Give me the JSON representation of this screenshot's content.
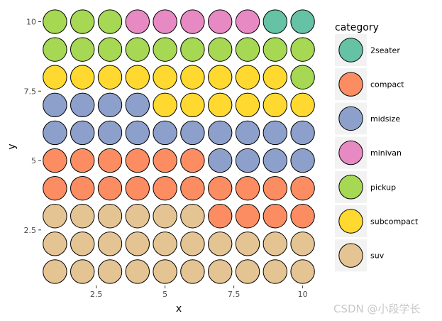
{
  "chart_data": {
    "type": "waffle-scatter",
    "xlabel": "x",
    "ylabel": "y",
    "xlim": [
      0.5,
      10.5
    ],
    "ylim": [
      0.5,
      10.5
    ],
    "xticks": [
      2.5,
      5,
      7.5,
      10
    ],
    "yticks": [
      2.5,
      5,
      7.5,
      10
    ],
    "xtick_labels": [
      "2.5",
      "5",
      "7.5",
      "10"
    ],
    "ytick_labels": [
      "2.5",
      "5",
      "7.5",
      "10"
    ],
    "legend": {
      "title": "category",
      "position": "right",
      "items": [
        {
          "key": "2seater",
          "label": "2seater",
          "color": "#66c2a5"
        },
        {
          "key": "compact",
          "label": "compact",
          "color": "#fc8d62"
        },
        {
          "key": "midsize",
          "label": "midsize",
          "color": "#8da0cb"
        },
        {
          "key": "minivan",
          "label": "minivan",
          "color": "#e78ac3"
        },
        {
          "key": "pickup",
          "label": "pickup",
          "color": "#a6d854"
        },
        {
          "key": "subcompact",
          "label": "subcompact",
          "color": "#ffd92f"
        },
        {
          "key": "suv",
          "label": "suv",
          "color": "#e5c494"
        }
      ]
    },
    "grid_rows_top_to_bottom": [
      {
        "y": 10,
        "cells": [
          "pickup",
          "pickup",
          "pickup",
          "minivan",
          "minivan",
          "minivan",
          "minivan",
          "minivan",
          "2seater",
          "2seater"
        ]
      },
      {
        "y": 9,
        "cells": [
          "pickup",
          "pickup",
          "pickup",
          "pickup",
          "pickup",
          "pickup",
          "pickup",
          "pickup",
          "pickup",
          "pickup"
        ]
      },
      {
        "y": 8,
        "cells": [
          "subcompact",
          "subcompact",
          "subcompact",
          "subcompact",
          "subcompact",
          "subcompact",
          "subcompact",
          "subcompact",
          "subcompact",
          "pickup"
        ]
      },
      {
        "y": 7,
        "cells": [
          "midsize",
          "midsize",
          "midsize",
          "midsize",
          "subcompact",
          "subcompact",
          "subcompact",
          "subcompact",
          "subcompact",
          "subcompact"
        ]
      },
      {
        "y": 6,
        "cells": [
          "midsize",
          "midsize",
          "midsize",
          "midsize",
          "midsize",
          "midsize",
          "midsize",
          "midsize",
          "midsize",
          "midsize"
        ]
      },
      {
        "y": 5,
        "cells": [
          "compact",
          "compact",
          "compact",
          "compact",
          "compact",
          "compact",
          "midsize",
          "midsize",
          "midsize",
          "midsize"
        ]
      },
      {
        "y": 4,
        "cells": [
          "compact",
          "compact",
          "compact",
          "compact",
          "compact",
          "compact",
          "compact",
          "compact",
          "compact",
          "compact"
        ]
      },
      {
        "y": 3,
        "cells": [
          "suv",
          "suv",
          "suv",
          "suv",
          "suv",
          "suv",
          "compact",
          "compact",
          "compact",
          "compact"
        ]
      },
      {
        "y": 2,
        "cells": [
          "suv",
          "suv",
          "suv",
          "suv",
          "suv",
          "suv",
          "suv",
          "suv",
          "suv",
          "suv"
        ]
      },
      {
        "y": 1,
        "cells": [
          "suv",
          "suv",
          "suv",
          "suv",
          "suv",
          "suv",
          "suv",
          "suv",
          "suv",
          "suv"
        ]
      }
    ]
  },
  "watermark": "CSDN @小段学长"
}
